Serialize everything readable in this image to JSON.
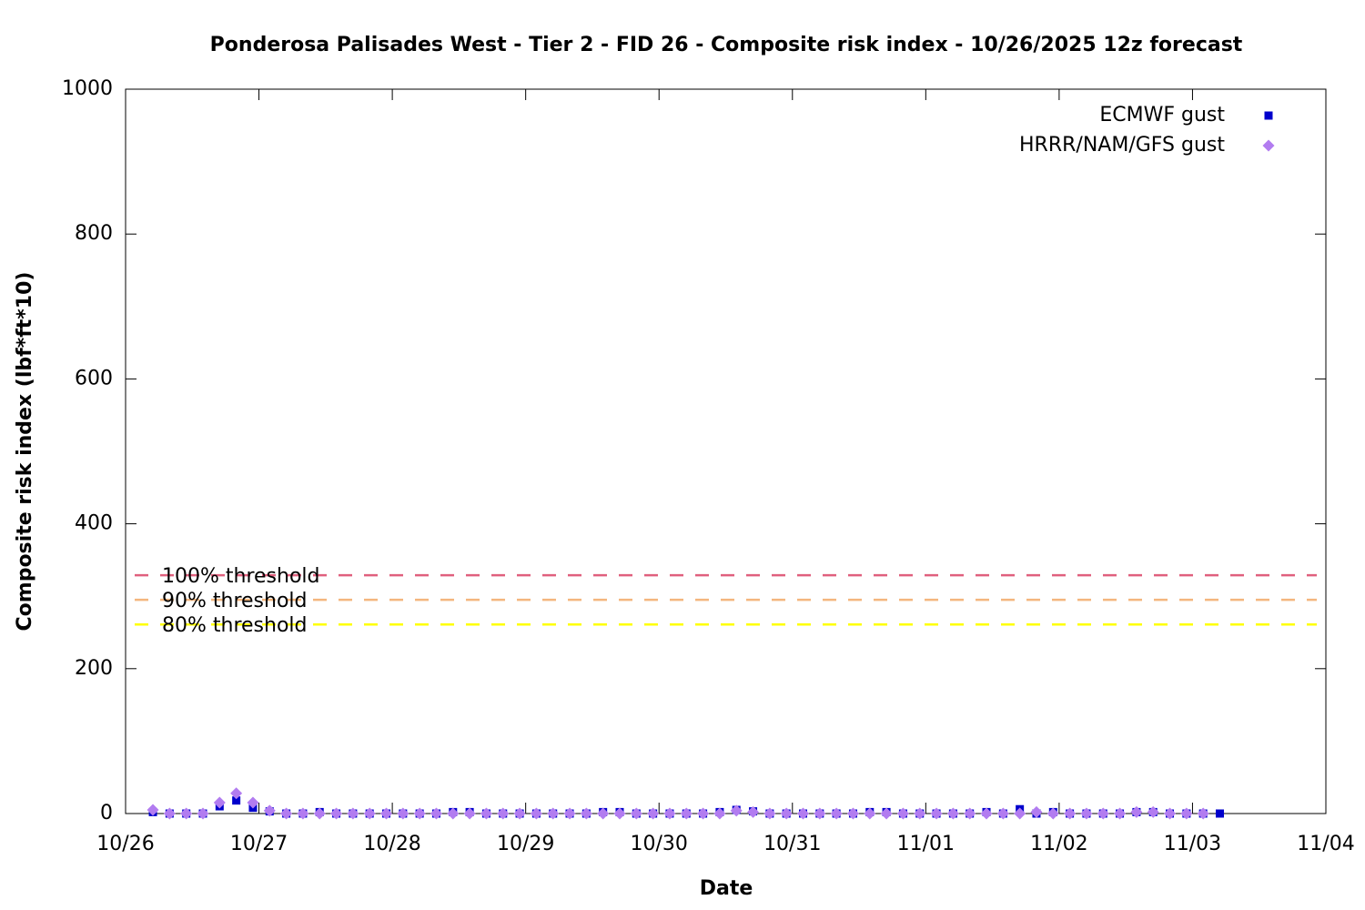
{
  "chart_data": {
    "type": "scatter",
    "title": "Ponderosa Palisades West - Tier 2 - FID 26 - Composite risk index - 10/26/2025 12z forecast",
    "x_label": "Date",
    "y_label": "Composite risk index (lbf*ft*10)",
    "xlim": [
      0,
      9
    ],
    "xticks": [
      {
        "value": 0,
        "label": "10/26"
      },
      {
        "value": 1,
        "label": "10/27"
      },
      {
        "value": 2,
        "label": "10/28"
      },
      {
        "value": 3,
        "label": "10/29"
      },
      {
        "value": 4,
        "label": "10/30"
      },
      {
        "value": 5,
        "label": "10/31"
      },
      {
        "value": 6,
        "label": "11/01"
      },
      {
        "value": 7,
        "label": "11/02"
      },
      {
        "value": 8,
        "label": "11/03"
      },
      {
        "value": 9,
        "label": "11/04"
      }
    ],
    "ylim": [
      0,
      1000
    ],
    "yticks": [
      0,
      200,
      400,
      600,
      800,
      1000
    ],
    "legend": "upper right",
    "x": [
      0.205,
      0.33,
      0.455,
      0.58,
      0.705,
      0.83,
      0.955,
      1.08,
      1.205,
      1.33,
      1.455,
      1.58,
      1.705,
      1.83,
      1.955,
      2.08,
      2.205,
      2.33,
      2.455,
      2.58,
      2.705,
      2.83,
      2.955,
      3.08,
      3.205,
      3.33,
      3.455,
      3.58,
      3.705,
      3.83,
      3.955,
      4.08,
      4.205,
      4.33,
      4.455,
      4.58,
      4.705,
      4.83,
      4.955,
      5.08,
      5.205,
      5.33,
      5.455,
      5.58,
      5.705,
      5.83,
      5.955,
      6.08,
      6.205,
      6.33,
      6.455,
      6.58,
      6.705,
      6.83,
      6.955,
      7.08,
      7.205,
      7.33,
      7.455,
      7.58,
      7.705,
      7.83,
      7.955,
      8.08,
      8.205
    ],
    "series": [
      {
        "name": "ECMWF gust",
        "color": "#0000cc",
        "marker": "square",
        "values": [
          2,
          0,
          0,
          0,
          10,
          18,
          8,
          3,
          0,
          0,
          2,
          0,
          0,
          0,
          0,
          0,
          0,
          0,
          2,
          2,
          0,
          0,
          0,
          0,
          0,
          0,
          0,
          2,
          2,
          0,
          0,
          0,
          0,
          0,
          2,
          5,
          3,
          0,
          0,
          0,
          0,
          0,
          0,
          2,
          2,
          0,
          0,
          0,
          0,
          0,
          2,
          0,
          6,
          0,
          2,
          0,
          0,
          0,
          0,
          2,
          2,
          0,
          0,
          0,
          0
        ]
      },
      {
        "name": "HRRR/NAM/GFS gust",
        "color": "#b27cf0",
        "marker": "diamond",
        "values": [
          5,
          0,
          0,
          0,
          15,
          28,
          15,
          4,
          0,
          0,
          0,
          0,
          0,
          0,
          0,
          0,
          0,
          0,
          0,
          0,
          0,
          0,
          0,
          0,
          0,
          0,
          0,
          0,
          0,
          0,
          0,
          0,
          0,
          0,
          0,
          4,
          2,
          0,
          0,
          0,
          0,
          0,
          0,
          0,
          0,
          0,
          0,
          0,
          0,
          0,
          0,
          0,
          0,
          2,
          0,
          0,
          0,
          0,
          0,
          2,
          2,
          0,
          0,
          0,
          null
        ]
      }
    ],
    "thresholds": [
      {
        "label": "100% threshold",
        "value": 329,
        "color": "#e0607e"
      },
      {
        "label": "90% threshold",
        "value": 295,
        "color": "#f4b67e"
      },
      {
        "label": "80% threshold",
        "value": 261,
        "color": "#ffff00"
      }
    ]
  }
}
